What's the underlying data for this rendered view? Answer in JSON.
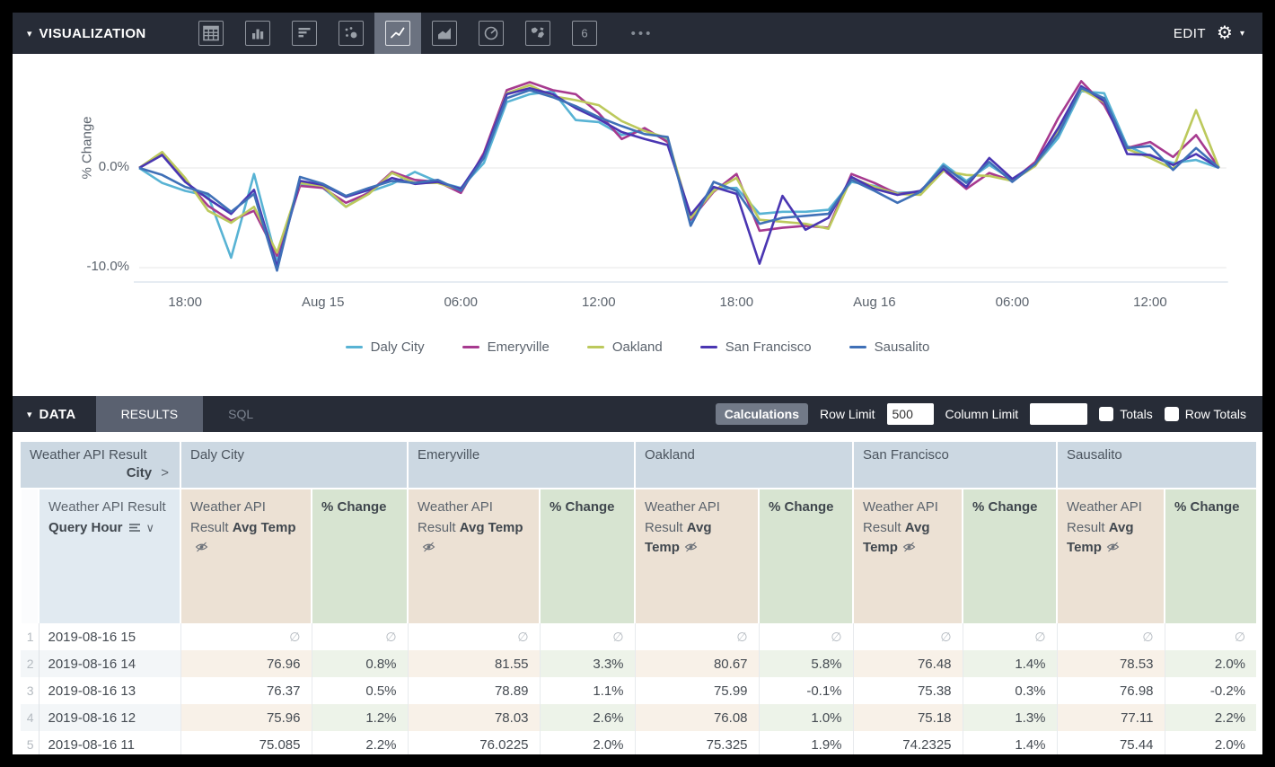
{
  "visualization_bar": {
    "title": "VISUALIZATION",
    "edit_label": "EDIT",
    "icons": [
      "table",
      "column-chart",
      "bar-chart",
      "scatter",
      "line-chart",
      "area-chart",
      "pie-chart",
      "map",
      "single-value"
    ],
    "selected_icon": "line-chart",
    "more_label": "•••"
  },
  "chart_data": {
    "type": "line",
    "title": "",
    "xlabel": "",
    "ylabel": "% Change",
    "ylim": [
      -11,
      10.5
    ],
    "grid": "horizontal",
    "legend_position": "bottom",
    "yticks": [
      {
        "value": 0,
        "label": "0.0%"
      },
      {
        "value": -10,
        "label": "-10.0%"
      }
    ],
    "xticks": [
      {
        "index": 2,
        "label": "18:00"
      },
      {
        "index": 8,
        "label": "Aug 15"
      },
      {
        "index": 14,
        "label": "06:00"
      },
      {
        "index": 20,
        "label": "12:00"
      },
      {
        "index": 26,
        "label": "18:00"
      },
      {
        "index": 32,
        "label": "Aug 16"
      },
      {
        "index": 38,
        "label": "06:00"
      },
      {
        "index": 44,
        "label": "12:00"
      }
    ],
    "x": [
      "2019-08-14 16",
      "2019-08-14 17",
      "2019-08-14 18",
      "2019-08-14 19",
      "2019-08-14 20",
      "2019-08-14 21",
      "2019-08-14 22",
      "2019-08-14 23",
      "2019-08-15 00",
      "2019-08-15 01",
      "2019-08-15 02",
      "2019-08-15 03",
      "2019-08-15 04",
      "2019-08-15 05",
      "2019-08-15 06",
      "2019-08-15 07",
      "2019-08-15 08",
      "2019-08-15 09",
      "2019-08-15 10",
      "2019-08-15 11",
      "2019-08-15 12",
      "2019-08-15 13",
      "2019-08-15 14",
      "2019-08-15 15",
      "2019-08-15 16",
      "2019-08-15 17",
      "2019-08-15 18",
      "2019-08-15 19",
      "2019-08-15 20",
      "2019-08-15 21",
      "2019-08-15 22",
      "2019-08-15 23",
      "2019-08-16 00",
      "2019-08-16 01",
      "2019-08-16 02",
      "2019-08-16 03",
      "2019-08-16 04",
      "2019-08-16 05",
      "2019-08-16 06",
      "2019-08-16 07",
      "2019-08-16 08",
      "2019-08-16 09",
      "2019-08-16 10",
      "2019-08-16 11",
      "2019-08-16 12",
      "2019-08-16 13",
      "2019-08-16 14",
      "2019-08-16 15"
    ],
    "series": [
      {
        "name": "Daly City",
        "color": "#58b3d4",
        "values": [
          0,
          -1.5,
          -2.3,
          -2.8,
          -9,
          -0.6,
          -9.4,
          -1.6,
          -2,
          -3.9,
          -2.4,
          -1.6,
          -0.4,
          -1.4,
          -2,
          0.5,
          6.6,
          7.4,
          7.7,
          4.8,
          4.6,
          3.3,
          3.8,
          2.8,
          -5.4,
          -2.1,
          -2,
          -4.6,
          -4.4,
          -4.4,
          -4.2,
          -1.4,
          -1.8,
          -2.5,
          -2.4,
          0.4,
          -1.3,
          0.3,
          -1.2,
          0.3,
          3,
          7.7,
          7.5,
          2.2,
          1.2,
          0.5,
          0.8,
          0
        ]
      },
      {
        "name": "Emeryville",
        "color": "#a73a8f",
        "values": [
          0,
          1.4,
          -1.2,
          -3.8,
          -5.3,
          -4.3,
          -8.8,
          -1.8,
          -2,
          -3.5,
          -2.5,
          -0.4,
          -1.2,
          -1.4,
          -2.5,
          1.5,
          7.8,
          8.6,
          7.8,
          7.4,
          5.5,
          2.9,
          4,
          2.6,
          -5.2,
          -2.4,
          -0.6,
          -6.3,
          -6,
          -5.8,
          -6,
          -0.6,
          -1.5,
          -2.6,
          -2.4,
          -0.2,
          -2.1,
          -0.5,
          -1.3,
          0.6,
          5,
          8.7,
          6.3,
          2,
          2.6,
          1.1,
          3.3,
          0
        ]
      },
      {
        "name": "Oakland",
        "color": "#bcc95c",
        "values": [
          0,
          1.6,
          -1,
          -4.3,
          -5.5,
          -3.9,
          -8.5,
          -1.5,
          -1.8,
          -3.9,
          -2.6,
          -0.5,
          -1.5,
          -1.5,
          -2.2,
          1.2,
          7.5,
          8.3,
          7.2,
          6.8,
          6.3,
          4.7,
          3.7,
          3,
          -5,
          -2.3,
          -1,
          -5.2,
          -5.4,
          -5.6,
          -6.1,
          -1,
          -1.9,
          -2.6,
          -2.7,
          -0.3,
          -0.7,
          -0.8,
          -1.3,
          0.2,
          3.6,
          7.9,
          6.6,
          1.9,
          1,
          -0.1,
          5.8,
          0
        ]
      },
      {
        "name": "San Francisco",
        "color": "#4a36b2",
        "values": [
          0,
          1.3,
          -1.4,
          -3.1,
          -4.6,
          -2.2,
          -9.9,
          -1.3,
          -1.7,
          -2.9,
          -2.2,
          -1,
          -1.6,
          -1.4,
          -2.1,
          1.3,
          7.4,
          8,
          7.4,
          6,
          4.9,
          3.6,
          2.9,
          2.3,
          -4.7,
          -1.9,
          -2.6,
          -9.6,
          -2.8,
          -6.2,
          -5,
          -0.9,
          -2.1,
          -2.7,
          -2.3,
          -0.1,
          -1.9,
          1,
          -1.1,
          0.4,
          4,
          8.2,
          6.7,
          1.4,
          1.3,
          0.3,
          1.4,
          0
        ]
      },
      {
        "name": "Sausalito",
        "color": "#3f70b7",
        "values": [
          0,
          -0.7,
          -1.9,
          -2.6,
          -4.4,
          -2.6,
          -10.3,
          -0.9,
          -1.6,
          -2.8,
          -2,
          -1.3,
          -1.5,
          -1.2,
          -2.3,
          1,
          7,
          7.8,
          7.1,
          6.2,
          5.1,
          4.2,
          3.4,
          3.1,
          -5.8,
          -1.4,
          -2.3,
          -5.6,
          -5,
          -4.8,
          -4.6,
          -1.2,
          -2.3,
          -3.5,
          -2.4,
          0.2,
          -1.5,
          0.6,
          -1.4,
          0.4,
          3.4,
          8,
          7,
          2,
          2.2,
          -0.2,
          2,
          0
        ]
      }
    ]
  },
  "data_bar": {
    "title": "DATA",
    "tabs": [
      {
        "label": "RESULTS",
        "active": true
      },
      {
        "label": "SQL",
        "active": false
      }
    ],
    "calculations_label": "Calculations",
    "row_limit_label": "Row Limit",
    "row_limit_value": "500",
    "column_limit_label": "Column Limit",
    "column_limit_value": "",
    "totals_label": "Totals",
    "totals_checked": false,
    "row_totals_label": "Row Totals",
    "row_totals_checked": false
  },
  "table": {
    "pivot_prefix": "Weather API Result",
    "pivot_field": "City",
    "pivot_chevron": ">",
    "cities": [
      "Daly City",
      "Emeryville",
      "Oakland",
      "San Francisco",
      "Sausalito"
    ],
    "row_field_prefix": "Weather API Result",
    "row_field_name": "Query Hour",
    "measure_prefix": "Weather API Result",
    "measure_name": "Avg Temp",
    "calc_name": "% Change",
    "null_symbol": "∅",
    "rows": [
      {
        "num": "1",
        "hour": "2019-08-16 15",
        "values": [
          "∅",
          "∅",
          "∅",
          "∅",
          "∅",
          "∅",
          "∅",
          "∅",
          "∅",
          "∅"
        ]
      },
      {
        "num": "2",
        "hour": "2019-08-16 14",
        "values": [
          "76.96",
          "0.8%",
          "81.55",
          "3.3%",
          "80.67",
          "5.8%",
          "76.48",
          "1.4%",
          "78.53",
          "2.0%"
        ]
      },
      {
        "num": "3",
        "hour": "2019-08-16 13",
        "values": [
          "76.37",
          "0.5%",
          "78.89",
          "1.1%",
          "75.99",
          "-0.1%",
          "75.38",
          "0.3%",
          "76.98",
          "-0.2%"
        ]
      },
      {
        "num": "4",
        "hour": "2019-08-16 12",
        "values": [
          "75.96",
          "1.2%",
          "78.03",
          "2.6%",
          "76.08",
          "1.0%",
          "75.18",
          "1.3%",
          "77.11",
          "2.2%"
        ]
      },
      {
        "num": "5",
        "hour": "2019-08-16 11",
        "values": [
          "75.085",
          "2.2%",
          "76.0225",
          "2.0%",
          "75.325",
          "1.9%",
          "74.2325",
          "1.4%",
          "75.44",
          "2.0%"
        ]
      }
    ]
  }
}
